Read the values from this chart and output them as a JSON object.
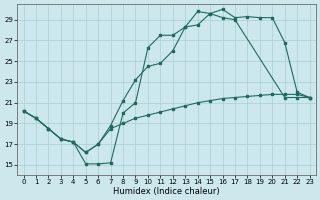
{
  "xlabel": "Humidex (Indice chaleur)",
  "bg_color": "#cce8ec",
  "grid_color": "#aacdd4",
  "line_color": "#1e6b5e",
  "xmin": -0.5,
  "xmax": 23.5,
  "ymin": 14,
  "ymax": 30.5,
  "yticks": [
    15,
    17,
    19,
    21,
    23,
    25,
    27,
    29
  ],
  "xticks": [
    0,
    1,
    2,
    3,
    4,
    5,
    6,
    7,
    8,
    9,
    10,
    11,
    12,
    13,
    14,
    15,
    16,
    17,
    18,
    19,
    20,
    21,
    22,
    23
  ],
  "line1_x": [
    0,
    1,
    2,
    3,
    4,
    5,
    6,
    7,
    8,
    9,
    10,
    11,
    12,
    13,
    14,
    15,
    16,
    17,
    18,
    19,
    20,
    21,
    22,
    23
  ],
  "line1_y": [
    20.2,
    19.5,
    18.5,
    17.5,
    17.2,
    15.1,
    15.1,
    15.2,
    20.0,
    21.0,
    26.3,
    27.5,
    27.5,
    28.3,
    28.5,
    29.6,
    30.0,
    29.2,
    29.3,
    29.2,
    29.2,
    26.8,
    22.0,
    21.5
  ],
  "line2_x": [
    0,
    1,
    2,
    3,
    4,
    5,
    6,
    7,
    8,
    9,
    10,
    11,
    12,
    13,
    14,
    15,
    16,
    17,
    21,
    22,
    23
  ],
  "line2_y": [
    20.2,
    19.5,
    18.5,
    17.5,
    17.2,
    16.2,
    17.0,
    18.8,
    21.2,
    23.2,
    24.5,
    24.8,
    26.0,
    28.3,
    29.8,
    29.6,
    29.2,
    29.0,
    21.5,
    21.5,
    21.5
  ],
  "line3_x": [
    0,
    1,
    2,
    3,
    4,
    5,
    6,
    7,
    8,
    9,
    10,
    11,
    12,
    13,
    14,
    15,
    16,
    17,
    18,
    19,
    20,
    21,
    22,
    23
  ],
  "line3_y": [
    20.2,
    19.5,
    18.5,
    17.5,
    17.2,
    16.2,
    17.0,
    18.5,
    19.0,
    19.5,
    19.8,
    20.1,
    20.4,
    20.7,
    21.0,
    21.2,
    21.4,
    21.5,
    21.6,
    21.7,
    21.8,
    21.8,
    21.8,
    21.5
  ]
}
